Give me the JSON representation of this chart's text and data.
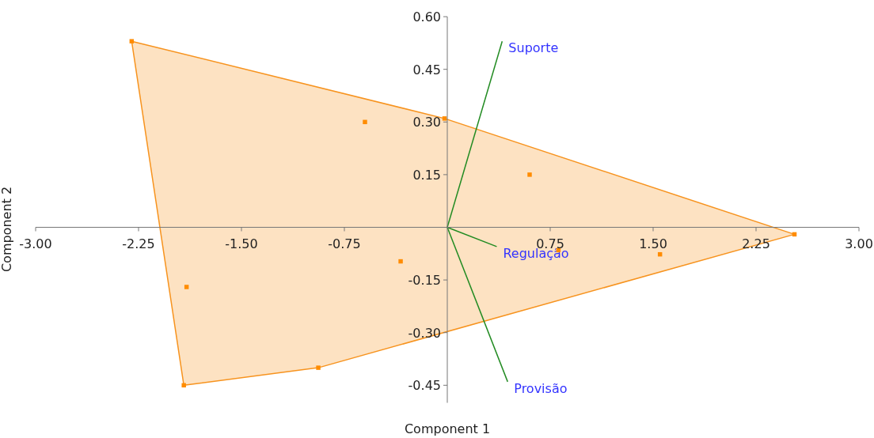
{
  "chart_data": {
    "type": "scatter",
    "xlabel": "Component 1",
    "ylabel": "Component 2",
    "xlim": [
      -3,
      3
    ],
    "ylim": [
      -0.5,
      0.6
    ],
    "xticks": [
      {
        "value": -3,
        "label": "-3.00"
      },
      -2.25,
      {
        "value": -1.5,
        "label": "-1.50"
      },
      -0.75,
      {
        "value": 0.75,
        "label": "0.75"
      },
      {
        "value": 1.5,
        "label": "1.50"
      },
      2.25,
      {
        "value": 3,
        "label": "3.00"
      }
    ],
    "yticks": [
      {
        "value": -0.45,
        "label": "-0.45"
      },
      {
        "value": -0.3,
        "label": "-0.30"
      },
      {
        "value": -0.15,
        "label": "-0.15"
      },
      {
        "value": 0.15,
        "label": "0.15"
      },
      {
        "value": 0.3,
        "label": "0.30"
      },
      {
        "value": 0.45,
        "label": "0.45"
      },
      {
        "value": 0.6,
        "label": "0.60"
      }
    ],
    "grid": false,
    "series": [
      {
        "type": "area",
        "color": "#f7931e",
        "x": [
          -2.3,
          -0.02,
          2.53,
          -0.94,
          -1.92
        ],
        "values": [
          0.53,
          0.31,
          -0.02,
          -0.4,
          -0.45
        ]
      },
      {
        "marker": "square",
        "color": "#ff8c00",
        "x": [
          -2.3,
          -0.6,
          -0.02,
          0.6,
          2.53,
          1.55,
          0.81,
          -0.34,
          -1.9,
          -1.92,
          -0.94
        ],
        "values": [
          0.53,
          0.3,
          0.31,
          0.15,
          -0.02,
          -0.077,
          -0.065,
          -0.097,
          -0.17,
          -0.45,
          -0.4
        ]
      },
      {
        "type": "line",
        "name": "Suporte",
        "color": "#228b22",
        "x": [
          0,
          0.4
        ],
        "values": [
          0,
          0.53
        ]
      },
      {
        "type": "line",
        "name": "Regulação",
        "color": "#228b22",
        "x": [
          0,
          0.36
        ],
        "values": [
          0,
          -0.055
        ]
      },
      {
        "type": "line",
        "name": "Provisão",
        "color": "#228b22",
        "x": [
          0,
          0.44
        ],
        "values": [
          0,
          -0.44
        ]
      }
    ]
  }
}
